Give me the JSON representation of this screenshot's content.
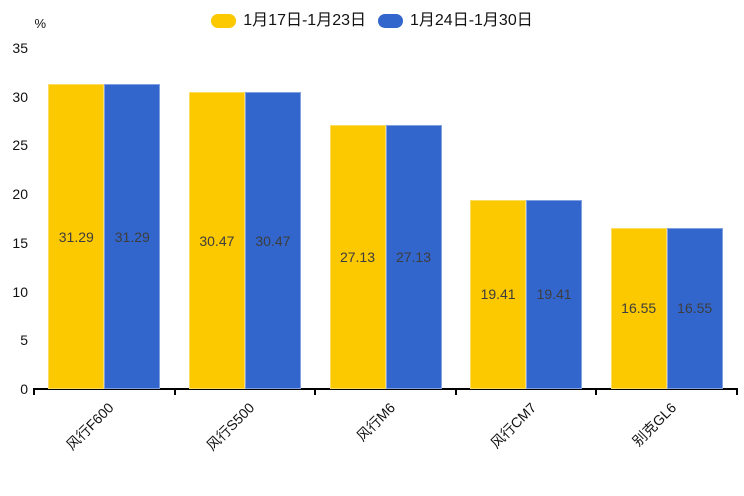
{
  "chart_data": {
    "type": "bar",
    "title": "",
    "categories": [
      "风行F600",
      "风行S500",
      "风行M6",
      "风行CM7",
      "别克GL6"
    ],
    "series": [
      {
        "name": "1月17日-1月23日",
        "color": "#FCC800",
        "values": [
          31.29,
          30.47,
          27.13,
          19.41,
          16.55
        ]
      },
      {
        "name": "1月24日-1月30日",
        "color": "#3366CC",
        "values": [
          31.29,
          30.47,
          27.13,
          19.41,
          16.55
        ]
      }
    ],
    "value_labels": [
      "31.29",
      "30.47",
      "27.13",
      "19.41",
      "16.55"
    ],
    "ylabel": "%",
    "ylim": [
      0,
      35
    ],
    "yticks": [
      35,
      30,
      25,
      20,
      15,
      10,
      5,
      0
    ],
    "grid": false,
    "legend_position": "top-center",
    "background_color": "#ffffff",
    "axis_color": "#000000",
    "value_label_color": "#3d3d3d"
  }
}
